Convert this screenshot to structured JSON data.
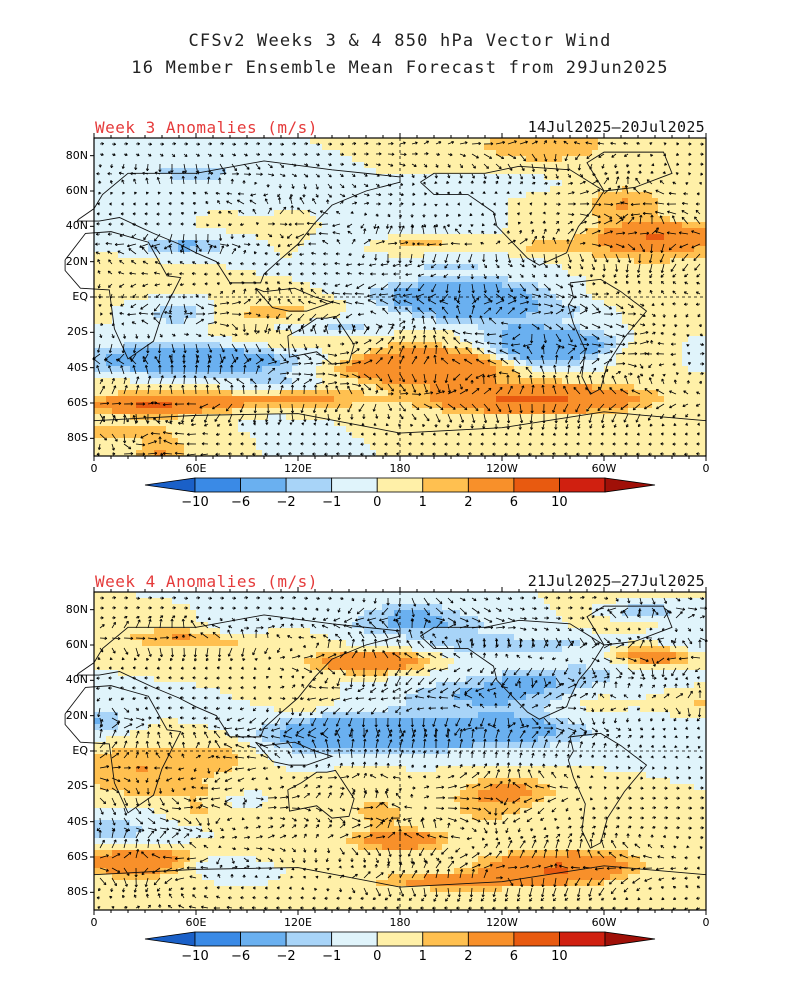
{
  "title_line1": "CFSv2 Weeks 3 & 4 850 hPa Vector Wind",
  "title_line2": "16 Member Ensemble Mean Forecast from 29Jun2025",
  "colors": {
    "levels": [
      "#1a60c8",
      "#3a8ae6",
      "#6ab0f0",
      "#a8d4f8",
      "#e0f4fb",
      "#fff0a8",
      "#ffc050",
      "#f8902a",
      "#e85a10",
      "#d02010",
      "#a01008"
    ],
    "panel_label": "#e53b3b"
  },
  "lat_labels": [
    "80N",
    "60N",
    "40N",
    "20N",
    "EQ",
    "20S",
    "40S",
    "60S",
    "80S"
  ],
  "lon_labels": [
    "0",
    "60E",
    "120E",
    "180",
    "120W",
    "60W",
    "0"
  ],
  "colorbar_labels": [
    "-10",
    "-6",
    "-2",
    "-1",
    "0",
    "1",
    "2",
    "6",
    "10"
  ],
  "panels": [
    {
      "label": "Week 3 Anomalies (m/s)",
      "date_range": "14Jul2025—20Jul2025"
    },
    {
      "label": "Week 4 Anomalies (m/s)",
      "date_range": "21Jul2025—27Jul2025"
    }
  ],
  "map_data": {
    "variable": "850 hPa vector wind anomaly",
    "units": "m/s",
    "lat_range": [
      -90,
      90
    ],
    "lon_range": [
      0,
      360
    ]
  }
}
